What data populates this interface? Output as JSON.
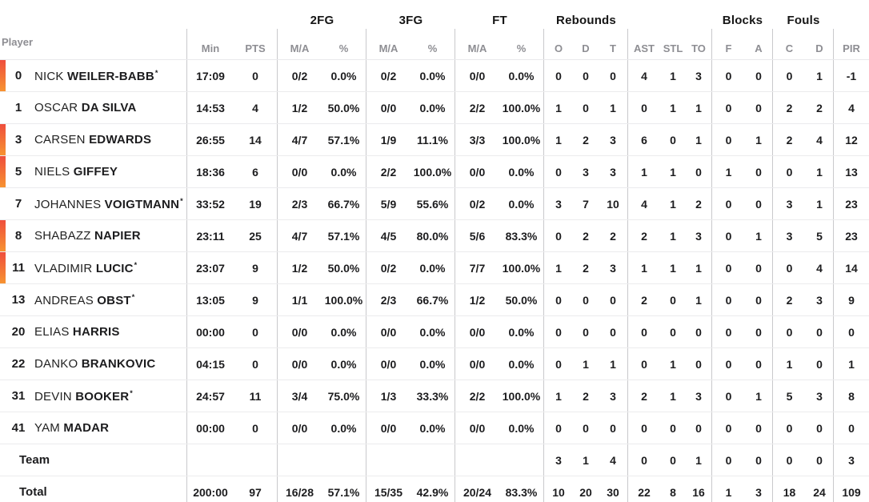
{
  "colors": {
    "accent_bar_top": "#ef4e3d",
    "accent_bar_bottom": "#f79331",
    "header_gray": "#8e8e93",
    "text_dark": "#1c1c1e",
    "divider": "#c9c9cc",
    "row_separator": "#ebebed"
  },
  "table": {
    "player_header": "Player",
    "starter_mark": "*",
    "group_headers": [
      "2FG",
      "3FG",
      "FT",
      "Rebounds",
      "Blocks",
      "Fouls"
    ],
    "sub_headers": [
      "Min",
      "PTS",
      "M/A",
      "%",
      "M/A",
      "%",
      "M/A",
      "%",
      "O",
      "D",
      "T",
      "AST",
      "STL",
      "TO",
      "F",
      "A",
      "C",
      "D",
      "PIR"
    ],
    "rows": [
      {
        "num": "0",
        "first": "NICK",
        "last": "WEILER-BABB",
        "starter": true,
        "on_court": true,
        "stats": [
          "17:09",
          "0",
          "0/2",
          "0.0%",
          "0/2",
          "0.0%",
          "0/0",
          "0.0%",
          "0",
          "0",
          "0",
          "4",
          "1",
          "3",
          "0",
          "0",
          "0",
          "1",
          "-1"
        ]
      },
      {
        "num": "1",
        "first": "OSCAR",
        "last": "DA SILVA",
        "starter": false,
        "on_court": false,
        "stats": [
          "14:53",
          "4",
          "1/2",
          "50.0%",
          "0/0",
          "0.0%",
          "2/2",
          "100.0%",
          "1",
          "0",
          "1",
          "0",
          "1",
          "1",
          "0",
          "0",
          "2",
          "2",
          "4"
        ]
      },
      {
        "num": "3",
        "first": "CARSEN",
        "last": "EDWARDS",
        "starter": false,
        "on_court": true,
        "stats": [
          "26:55",
          "14",
          "4/7",
          "57.1%",
          "1/9",
          "11.1%",
          "3/3",
          "100.0%",
          "1",
          "2",
          "3",
          "6",
          "0",
          "1",
          "0",
          "1",
          "2",
          "4",
          "12"
        ]
      },
      {
        "num": "5",
        "first": "NIELS",
        "last": "GIFFEY",
        "starter": false,
        "on_court": true,
        "stats": [
          "18:36",
          "6",
          "0/0",
          "0.0%",
          "2/2",
          "100.0%",
          "0/0",
          "0.0%",
          "0",
          "3",
          "3",
          "1",
          "1",
          "0",
          "1",
          "0",
          "0",
          "1",
          "13"
        ]
      },
      {
        "num": "7",
        "first": "JOHANNES",
        "last": "VOIGTMANN",
        "starter": true,
        "on_court": false,
        "stats": [
          "33:52",
          "19",
          "2/3",
          "66.7%",
          "5/9",
          "55.6%",
          "0/2",
          "0.0%",
          "3",
          "7",
          "10",
          "4",
          "1",
          "2",
          "0",
          "0",
          "3",
          "1",
          "23"
        ]
      },
      {
        "num": "8",
        "first": "SHABAZZ",
        "last": "NAPIER",
        "starter": false,
        "on_court": true,
        "stats": [
          "23:11",
          "25",
          "4/7",
          "57.1%",
          "4/5",
          "80.0%",
          "5/6",
          "83.3%",
          "0",
          "2",
          "2",
          "2",
          "1",
          "3",
          "0",
          "1",
          "3",
          "5",
          "23"
        ]
      },
      {
        "num": "11",
        "first": "VLADIMIR",
        "last": "LUCIC",
        "starter": true,
        "on_court": true,
        "stats": [
          "23:07",
          "9",
          "1/2",
          "50.0%",
          "0/2",
          "0.0%",
          "7/7",
          "100.0%",
          "1",
          "2",
          "3",
          "1",
          "1",
          "1",
          "0",
          "0",
          "0",
          "4",
          "14"
        ]
      },
      {
        "num": "13",
        "first": "ANDREAS",
        "last": "OBST",
        "starter": true,
        "on_court": false,
        "stats": [
          "13:05",
          "9",
          "1/1",
          "100.0%",
          "2/3",
          "66.7%",
          "1/2",
          "50.0%",
          "0",
          "0",
          "0",
          "2",
          "0",
          "1",
          "0",
          "0",
          "2",
          "3",
          "9"
        ]
      },
      {
        "num": "20",
        "first": "ELIAS",
        "last": "HARRIS",
        "starter": false,
        "on_court": false,
        "stats": [
          "00:00",
          "0",
          "0/0",
          "0.0%",
          "0/0",
          "0.0%",
          "0/0",
          "0.0%",
          "0",
          "0",
          "0",
          "0",
          "0",
          "0",
          "0",
          "0",
          "0",
          "0",
          "0"
        ]
      },
      {
        "num": "22",
        "first": "DANKO",
        "last": "BRANKOVIC",
        "starter": false,
        "on_court": false,
        "stats": [
          "04:15",
          "0",
          "0/0",
          "0.0%",
          "0/0",
          "0.0%",
          "0/0",
          "0.0%",
          "0",
          "1",
          "1",
          "0",
          "1",
          "0",
          "0",
          "0",
          "1",
          "0",
          "1"
        ]
      },
      {
        "num": "31",
        "first": "DEVIN",
        "last": "BOOKER",
        "starter": true,
        "on_court": false,
        "stats": [
          "24:57",
          "11",
          "3/4",
          "75.0%",
          "1/3",
          "33.3%",
          "2/2",
          "100.0%",
          "1",
          "2",
          "3",
          "2",
          "1",
          "3",
          "0",
          "1",
          "5",
          "3",
          "8"
        ]
      },
      {
        "num": "41",
        "first": "YAM",
        "last": "MADAR",
        "starter": false,
        "on_court": false,
        "stats": [
          "00:00",
          "0",
          "0/0",
          "0.0%",
          "0/0",
          "0.0%",
          "0/0",
          "0.0%",
          "0",
          "0",
          "0",
          "0",
          "0",
          "0",
          "0",
          "0",
          "0",
          "0",
          "0"
        ]
      }
    ],
    "summary_rows": [
      {
        "label": "Team",
        "stats": [
          "",
          "",
          "",
          "",
          "",
          "",
          "",
          "",
          "3",
          "1",
          "4",
          "0",
          "0",
          "1",
          "0",
          "0",
          "0",
          "0",
          "3"
        ]
      },
      {
        "label": "Total",
        "stats": [
          "200:00",
          "97",
          "16/28",
          "57.1%",
          "15/35",
          "42.9%",
          "20/24",
          "83.3%",
          "10",
          "20",
          "30",
          "22",
          "8",
          "16",
          "1",
          "3",
          "18",
          "24",
          "109"
        ]
      }
    ]
  }
}
